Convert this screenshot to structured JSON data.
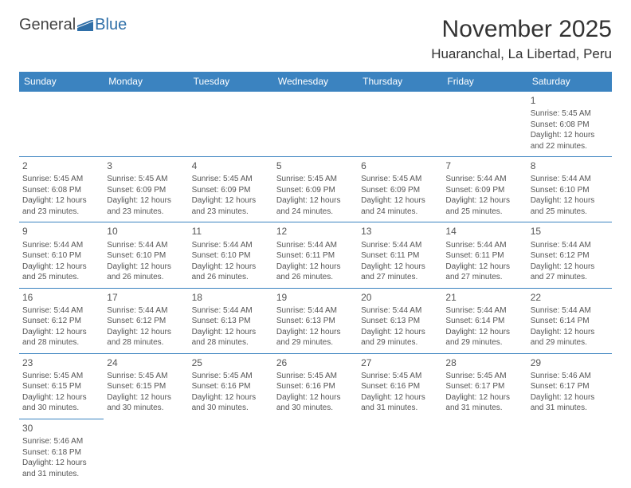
{
  "logo": {
    "general": "General",
    "blue": "Blue"
  },
  "title": "November 2025",
  "location": "Huaranchal, La Libertad, Peru",
  "colors": {
    "header_bg": "#3b83c0",
    "header_text": "#ffffff",
    "cell_border": "#3b83c0",
    "text": "#555555",
    "logo_blue": "#2f6fa8"
  },
  "day_headers": [
    "Sunday",
    "Monday",
    "Tuesday",
    "Wednesday",
    "Thursday",
    "Friday",
    "Saturday"
  ],
  "weeks": [
    [
      null,
      null,
      null,
      null,
      null,
      null,
      {
        "n": "1",
        "sr": "Sunrise: 5:45 AM",
        "ss": "Sunset: 6:08 PM",
        "dl": "Daylight: 12 hours and 22 minutes."
      }
    ],
    [
      {
        "n": "2",
        "sr": "Sunrise: 5:45 AM",
        "ss": "Sunset: 6:08 PM",
        "dl": "Daylight: 12 hours and 23 minutes."
      },
      {
        "n": "3",
        "sr": "Sunrise: 5:45 AM",
        "ss": "Sunset: 6:09 PM",
        "dl": "Daylight: 12 hours and 23 minutes."
      },
      {
        "n": "4",
        "sr": "Sunrise: 5:45 AM",
        "ss": "Sunset: 6:09 PM",
        "dl": "Daylight: 12 hours and 23 minutes."
      },
      {
        "n": "5",
        "sr": "Sunrise: 5:45 AM",
        "ss": "Sunset: 6:09 PM",
        "dl": "Daylight: 12 hours and 24 minutes."
      },
      {
        "n": "6",
        "sr": "Sunrise: 5:45 AM",
        "ss": "Sunset: 6:09 PM",
        "dl": "Daylight: 12 hours and 24 minutes."
      },
      {
        "n": "7",
        "sr": "Sunrise: 5:44 AM",
        "ss": "Sunset: 6:09 PM",
        "dl": "Daylight: 12 hours and 25 minutes."
      },
      {
        "n": "8",
        "sr": "Sunrise: 5:44 AM",
        "ss": "Sunset: 6:10 PM",
        "dl": "Daylight: 12 hours and 25 minutes."
      }
    ],
    [
      {
        "n": "9",
        "sr": "Sunrise: 5:44 AM",
        "ss": "Sunset: 6:10 PM",
        "dl": "Daylight: 12 hours and 25 minutes."
      },
      {
        "n": "10",
        "sr": "Sunrise: 5:44 AM",
        "ss": "Sunset: 6:10 PM",
        "dl": "Daylight: 12 hours and 26 minutes."
      },
      {
        "n": "11",
        "sr": "Sunrise: 5:44 AM",
        "ss": "Sunset: 6:10 PM",
        "dl": "Daylight: 12 hours and 26 minutes."
      },
      {
        "n": "12",
        "sr": "Sunrise: 5:44 AM",
        "ss": "Sunset: 6:11 PM",
        "dl": "Daylight: 12 hours and 26 minutes."
      },
      {
        "n": "13",
        "sr": "Sunrise: 5:44 AM",
        "ss": "Sunset: 6:11 PM",
        "dl": "Daylight: 12 hours and 27 minutes."
      },
      {
        "n": "14",
        "sr": "Sunrise: 5:44 AM",
        "ss": "Sunset: 6:11 PM",
        "dl": "Daylight: 12 hours and 27 minutes."
      },
      {
        "n": "15",
        "sr": "Sunrise: 5:44 AM",
        "ss": "Sunset: 6:12 PM",
        "dl": "Daylight: 12 hours and 27 minutes."
      }
    ],
    [
      {
        "n": "16",
        "sr": "Sunrise: 5:44 AM",
        "ss": "Sunset: 6:12 PM",
        "dl": "Daylight: 12 hours and 28 minutes."
      },
      {
        "n": "17",
        "sr": "Sunrise: 5:44 AM",
        "ss": "Sunset: 6:12 PM",
        "dl": "Daylight: 12 hours and 28 minutes."
      },
      {
        "n": "18",
        "sr": "Sunrise: 5:44 AM",
        "ss": "Sunset: 6:13 PM",
        "dl": "Daylight: 12 hours and 28 minutes."
      },
      {
        "n": "19",
        "sr": "Sunrise: 5:44 AM",
        "ss": "Sunset: 6:13 PM",
        "dl": "Daylight: 12 hours and 29 minutes."
      },
      {
        "n": "20",
        "sr": "Sunrise: 5:44 AM",
        "ss": "Sunset: 6:13 PM",
        "dl": "Daylight: 12 hours and 29 minutes."
      },
      {
        "n": "21",
        "sr": "Sunrise: 5:44 AM",
        "ss": "Sunset: 6:14 PM",
        "dl": "Daylight: 12 hours and 29 minutes."
      },
      {
        "n": "22",
        "sr": "Sunrise: 5:44 AM",
        "ss": "Sunset: 6:14 PM",
        "dl": "Daylight: 12 hours and 29 minutes."
      }
    ],
    [
      {
        "n": "23",
        "sr": "Sunrise: 5:45 AM",
        "ss": "Sunset: 6:15 PM",
        "dl": "Daylight: 12 hours and 30 minutes."
      },
      {
        "n": "24",
        "sr": "Sunrise: 5:45 AM",
        "ss": "Sunset: 6:15 PM",
        "dl": "Daylight: 12 hours and 30 minutes."
      },
      {
        "n": "25",
        "sr": "Sunrise: 5:45 AM",
        "ss": "Sunset: 6:16 PM",
        "dl": "Daylight: 12 hours and 30 minutes."
      },
      {
        "n": "26",
        "sr": "Sunrise: 5:45 AM",
        "ss": "Sunset: 6:16 PM",
        "dl": "Daylight: 12 hours and 30 minutes."
      },
      {
        "n": "27",
        "sr": "Sunrise: 5:45 AM",
        "ss": "Sunset: 6:16 PM",
        "dl": "Daylight: 12 hours and 31 minutes."
      },
      {
        "n": "28",
        "sr": "Sunrise: 5:45 AM",
        "ss": "Sunset: 6:17 PM",
        "dl": "Daylight: 12 hours and 31 minutes."
      },
      {
        "n": "29",
        "sr": "Sunrise: 5:46 AM",
        "ss": "Sunset: 6:17 PM",
        "dl": "Daylight: 12 hours and 31 minutes."
      }
    ],
    [
      {
        "n": "30",
        "sr": "Sunrise: 5:46 AM",
        "ss": "Sunset: 6:18 PM",
        "dl": "Daylight: 12 hours and 31 minutes."
      },
      null,
      null,
      null,
      null,
      null,
      null
    ]
  ]
}
